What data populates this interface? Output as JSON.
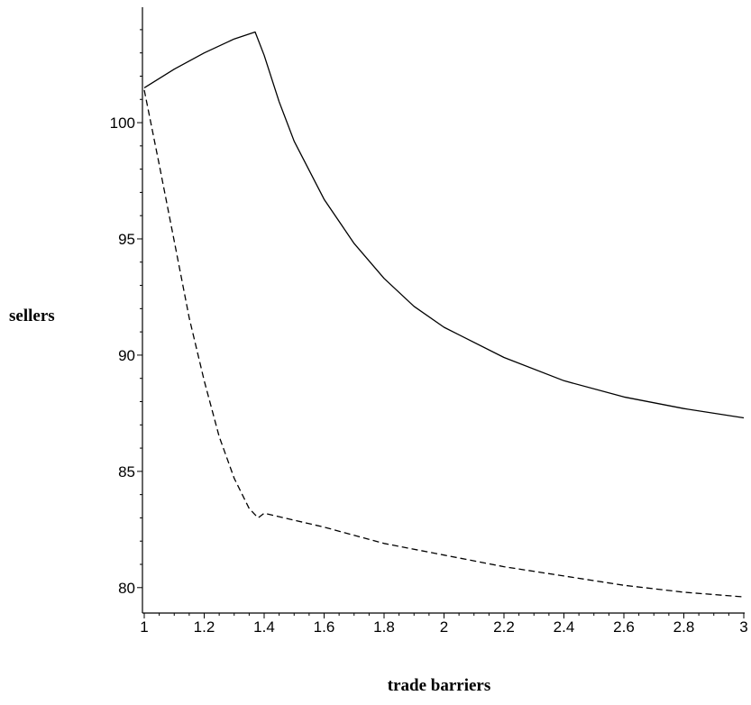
{
  "chart_data": {
    "type": "line",
    "title": "",
    "xlabel": "trade barriers",
    "ylabel": "sellers",
    "xlim": [
      1,
      3
    ],
    "ylim": [
      79.1,
      104.5
    ],
    "grid": false,
    "legend": "none",
    "x_ticks": [
      "1",
      "1.2",
      "1.4",
      "1.6",
      "1.8",
      "2",
      "2.2",
      "2.4",
      "2.6",
      "2.8",
      "3"
    ],
    "y_ticks": [
      "80",
      "85",
      "90",
      "95",
      "100"
    ],
    "series": [
      {
        "style": "solid",
        "color": "#000000",
        "x": [
          1.0,
          1.1,
          1.2,
          1.3,
          1.37,
          1.4,
          1.45,
          1.5,
          1.6,
          1.7,
          1.8,
          1.9,
          2.0,
          2.2,
          2.4,
          2.6,
          2.8,
          3.0
        ],
        "y": [
          101.5,
          102.3,
          103.0,
          103.6,
          103.9,
          102.9,
          100.9,
          99.2,
          96.7,
          94.8,
          93.3,
          92.1,
          91.2,
          89.9,
          88.9,
          88.2,
          87.7,
          87.3
        ]
      },
      {
        "style": "dashed",
        "color": "#000000",
        "x": [
          1.0,
          1.05,
          1.1,
          1.15,
          1.2,
          1.25,
          1.3,
          1.35,
          1.38,
          1.4,
          1.5,
          1.6,
          1.8,
          2.0,
          2.2,
          2.4,
          2.6,
          2.8,
          3.0
        ],
        "y": [
          101.4,
          98.2,
          94.9,
          91.6,
          88.9,
          86.5,
          84.7,
          83.4,
          83.0,
          83.2,
          82.9,
          82.6,
          81.9,
          81.4,
          80.9,
          80.5,
          80.1,
          79.8,
          79.6
        ]
      }
    ]
  }
}
